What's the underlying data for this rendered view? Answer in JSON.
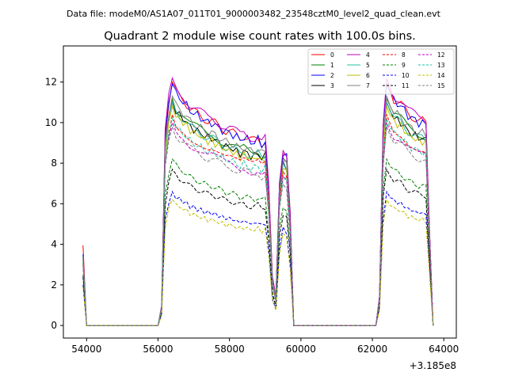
{
  "chart_data": {
    "type": "line",
    "suptitle": "Data file: modeM0/AS1A07_011T01_9000003482_23548cztM0_level2_quad_clean.evt",
    "title": "Quadrant 2 module wise count rates with 100.0s bins.",
    "xlabel": "",
    "ylabel": "",
    "x_offset_label": "+3.185e8",
    "xlim": [
      53350,
      64350
    ],
    "ylim": [
      -0.62,
      13.78
    ],
    "x_ticks": [
      54000,
      56000,
      58000,
      60000,
      62000,
      64000
    ],
    "x_tick_labels": [
      "54000",
      "56000",
      "58000",
      "60000",
      "62000",
      "64000"
    ],
    "y_ticks": [
      0,
      2,
      4,
      6,
      8,
      10,
      12
    ],
    "y_tick_labels": [
      "0",
      "2",
      "4",
      "6",
      "8",
      "10",
      "12"
    ],
    "legend_position": "top-right",
    "legend_columns": 4,
    "profile_x": [
      53900,
      54000,
      55900,
      56000,
      56100,
      56200,
      56300,
      56400,
      56500,
      56600,
      56700,
      56800,
      56900,
      57000,
      57100,
      57200,
      57300,
      57400,
      57500,
      57600,
      57700,
      57800,
      57900,
      58000,
      58100,
      58200,
      58300,
      58400,
      58500,
      58600,
      58700,
      58800,
      58900,
      59000,
      59100,
      59200,
      59300,
      59400,
      59500,
      59600,
      59700,
      59800,
      59900,
      62100,
      62200,
      62300,
      62400,
      62500,
      62600,
      62700,
      62800,
      62900,
      63000,
      63100,
      63200,
      63300,
      63400,
      63500,
      63600,
      63700
    ],
    "profile_y": [
      0.28,
      0,
      0,
      0,
      0.08,
      0.78,
      0.92,
      1.0,
      0.96,
      0.94,
      0.93,
      0.91,
      0.89,
      0.88,
      0.87,
      0.86,
      0.85,
      0.84,
      0.84,
      0.83,
      0.82,
      0.81,
      0.8,
      0.8,
      0.79,
      0.78,
      0.77,
      0.78,
      0.77,
      0.76,
      0.76,
      0.77,
      0.75,
      0.76,
      0.55,
      0.2,
      0.12,
      0.58,
      0.72,
      0.7,
      0.45,
      0.0,
      0.0,
      0.0,
      0.12,
      0.8,
      1.0,
      0.97,
      0.93,
      0.92,
      0.91,
      0.89,
      0.87,
      0.86,
      0.85,
      0.84,
      0.84,
      0.83,
      0.4,
      0.0
    ],
    "series": [
      {
        "name": "0",
        "color": "#ff0000",
        "dash": "solid",
        "peak": 12.0,
        "start": 3.95
      },
      {
        "name": "1",
        "color": "#008000",
        "dash": "solid",
        "peak": 11.2,
        "start": 3.4
      },
      {
        "name": "2",
        "color": "#0000ff",
        "dash": "solid",
        "peak": 11.9,
        "start": 3.5
      },
      {
        "name": "3",
        "color": "#000000",
        "dash": "solid",
        "peak": 11.0,
        "start": 3.3
      },
      {
        "name": "4",
        "color": "#bf00bf",
        "dash": "solid",
        "peak": 12.2,
        "start": 3.3
      },
      {
        "name": "5",
        "color": "#20c0a0",
        "dash": "solid",
        "peak": 11.0,
        "start": 3.2
      },
      {
        "name": "6",
        "color": "#bfbf00",
        "dash": "solid",
        "peak": 10.8,
        "start": 3.1
      },
      {
        "name": "7",
        "color": "#808080",
        "dash": "solid",
        "peak": 11.3,
        "start": 3.4
      },
      {
        "name": "8",
        "color": "#ff0000",
        "dash": "dashed",
        "peak": 10.4,
        "start": 3.1
      },
      {
        "name": "9",
        "color": "#008000",
        "dash": "dashed",
        "peak": 8.2,
        "start": 2.5
      },
      {
        "name": "10",
        "color": "#0000ff",
        "dash": "dashed",
        "peak": 6.6,
        "start": 2.0
      },
      {
        "name": "11",
        "color": "#000000",
        "dash": "dashed",
        "peak": 7.7,
        "start": 2.4
      },
      {
        "name": "12",
        "color": "#bf00bf",
        "dash": "dashed",
        "peak": 10.0,
        "start": 3.0
      },
      {
        "name": "13",
        "color": "#20c0a0",
        "dash": "dashed",
        "peak": 10.2,
        "start": 3.1
      },
      {
        "name": "14",
        "color": "#bfbf00",
        "dash": "dashed",
        "peak": 6.2,
        "start": 1.9
      },
      {
        "name": "15",
        "color": "#808080",
        "dash": "dashed",
        "peak": 9.8,
        "start": 3.0
      }
    ]
  }
}
